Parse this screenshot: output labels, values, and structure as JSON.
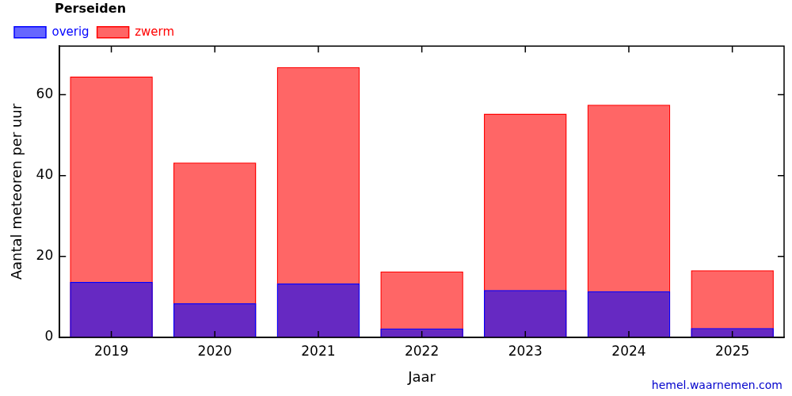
{
  "chart_data": {
    "type": "bar",
    "title": "Perseiden",
    "x_label": "Jaar",
    "y_label": "Aantal meteoren per uur",
    "source": "hemel.waarnemen.com",
    "categories": [
      "2019",
      "2020",
      "2021",
      "2022",
      "2023",
      "2024",
      "2025"
    ],
    "series": [
      {
        "name": "zwerm",
        "color": "#ff0000",
        "values": [
          64.5,
          43.2,
          66.8,
          16.3,
          55.3,
          57.5,
          16.6
        ]
      },
      {
        "name": "overig",
        "color": "#0000ff",
        "values": [
          13.7,
          8.4,
          13.3,
          2.2,
          11.7,
          11.4,
          2.3
        ]
      }
    ],
    "ylim": [
      0,
      72
    ],
    "yticks": [
      0,
      20,
      40,
      60
    ],
    "stacked": false,
    "grid": false,
    "legend": "top left"
  }
}
